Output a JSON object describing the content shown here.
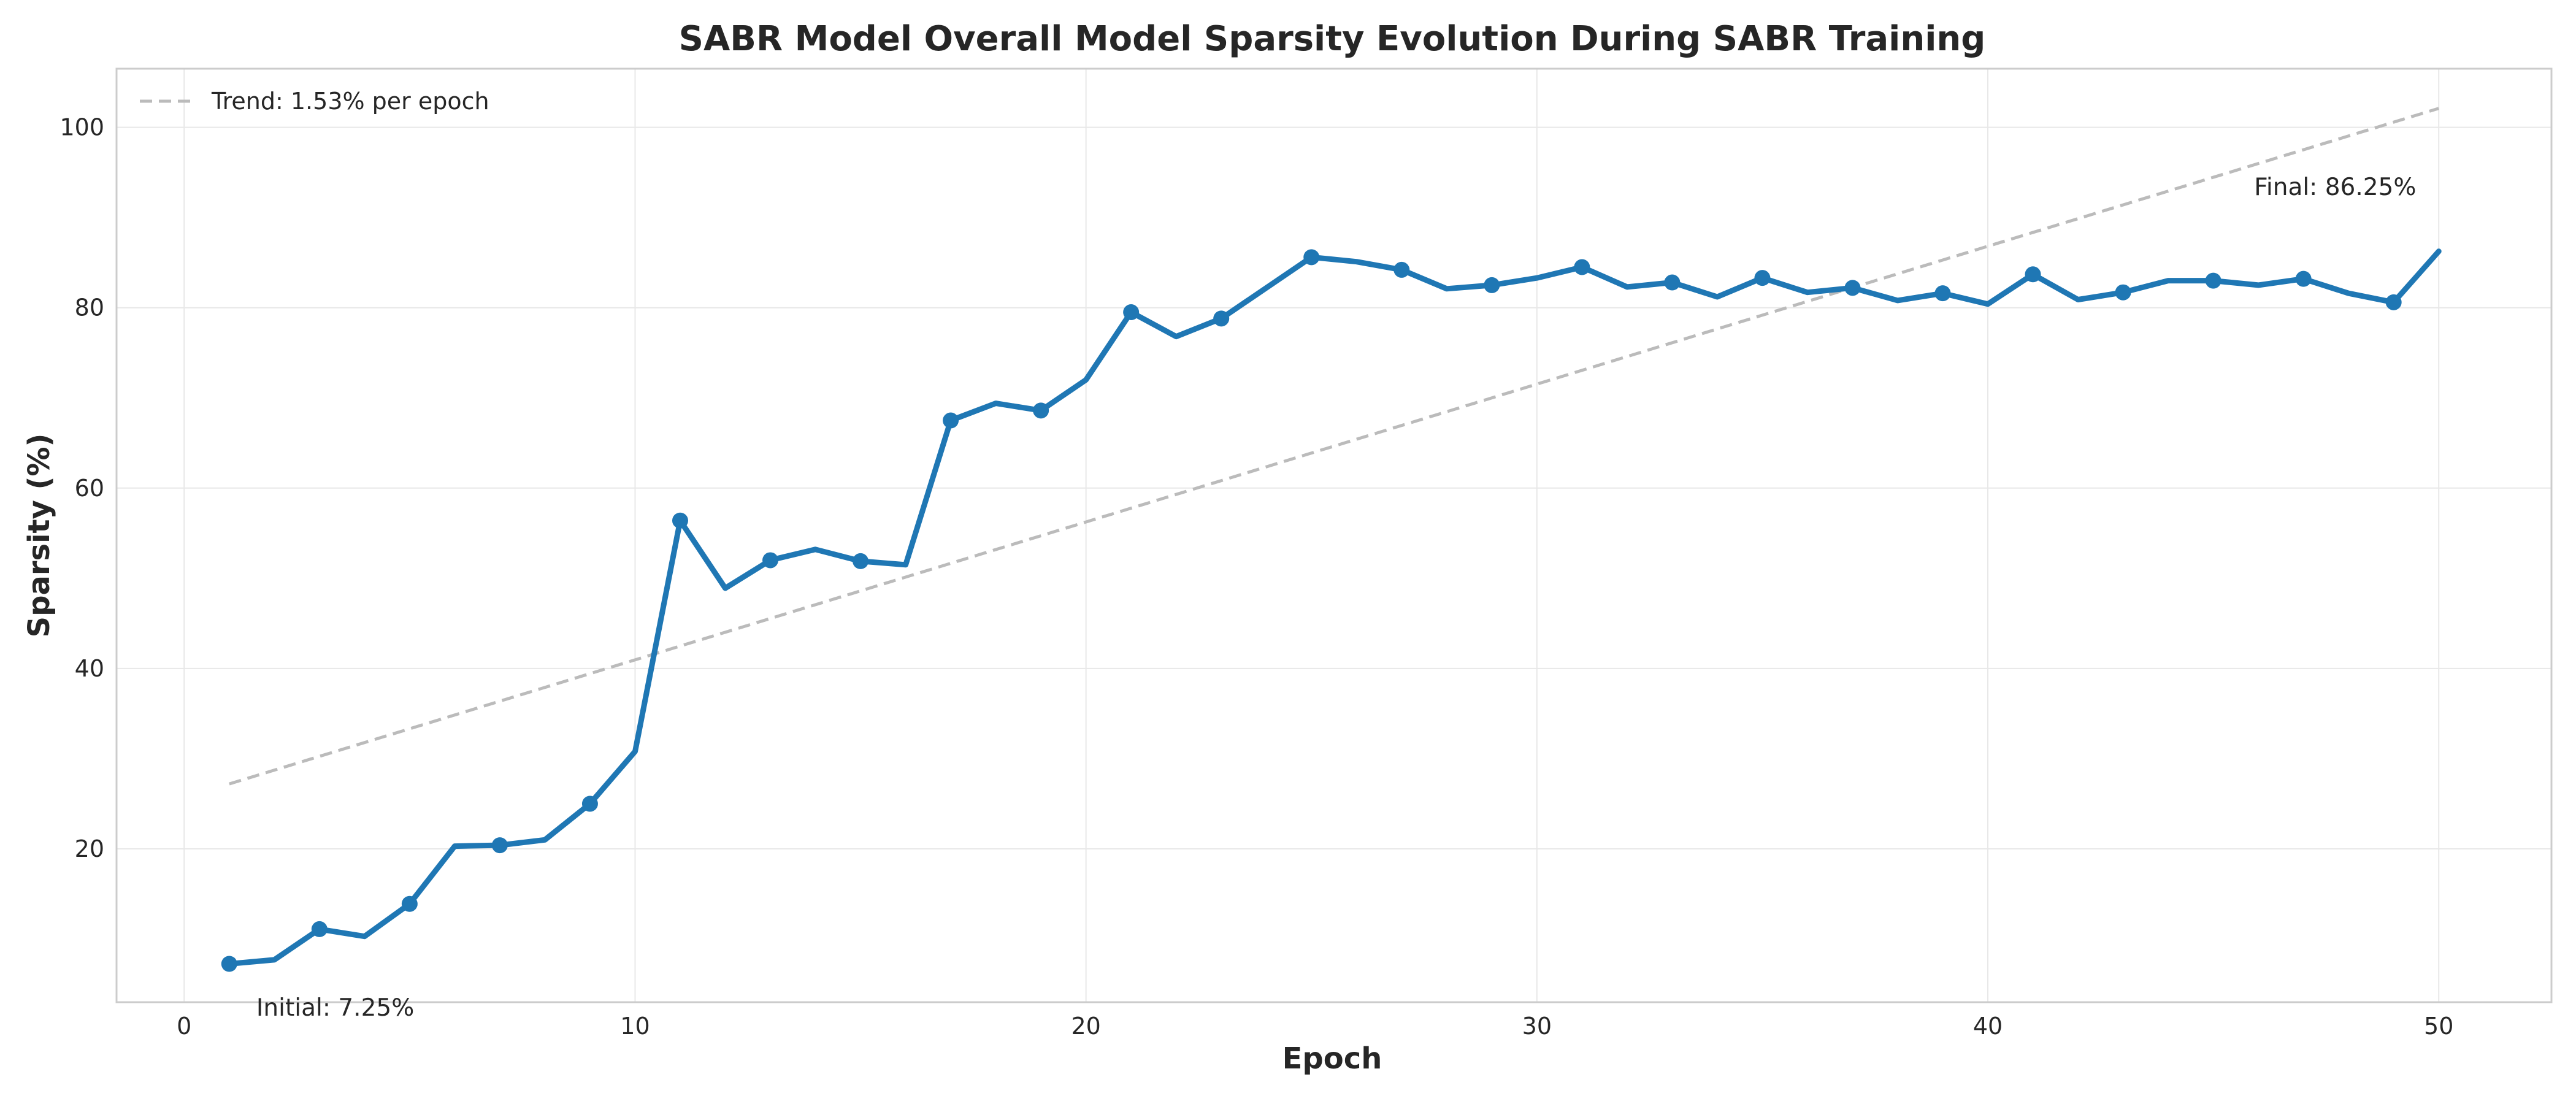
{
  "chart_data": {
    "type": "line",
    "title": "SABR Model Overall Model Sparsity Evolution During SABR Training",
    "xlabel": "Epoch",
    "ylabel": "Sparsity (%)",
    "xlim": [
      -1.5,
      52.5
    ],
    "ylim": [
      3,
      106.5
    ],
    "xticks": [
      0,
      10,
      20,
      30,
      40,
      50
    ],
    "yticks": [
      20,
      40,
      60,
      80,
      100
    ],
    "grid": true,
    "legend": {
      "placement": "top-left",
      "entries": [
        "Trend: 1.53% per epoch"
      ]
    },
    "series": [
      {
        "color": "#1f77b4",
        "markers_every": 2,
        "x": [
          1,
          2,
          3,
          4,
          5,
          6,
          7,
          8,
          9,
          10,
          11,
          12,
          13,
          14,
          15,
          16,
          17,
          18,
          19,
          20,
          21,
          22,
          23,
          24,
          25,
          26,
          27,
          28,
          29,
          30,
          31,
          32,
          33,
          34,
          35,
          36,
          37,
          38,
          39,
          40,
          41,
          42,
          43,
          44,
          45,
          46,
          47,
          48,
          49,
          50
        ],
        "values": [
          7.25,
          7.7,
          11.1,
          10.3,
          13.9,
          20.3,
          20.4,
          21.0,
          25.0,
          30.8,
          56.4,
          48.9,
          52.0,
          53.2,
          51.9,
          51.5,
          67.5,
          69.4,
          68.6,
          72.0,
          79.5,
          76.8,
          78.8,
          82.2,
          85.6,
          85.1,
          84.2,
          82.1,
          82.5,
          83.3,
          84.5,
          82.3,
          82.8,
          81.2,
          83.3,
          81.7,
          82.2,
          80.8,
          81.6,
          80.4,
          83.7,
          80.9,
          81.7,
          83.0,
          83.0,
          82.5,
          83.2,
          81.6,
          80.6,
          86.25
        ]
      }
    ],
    "trend": {
      "name": "Trend: 1.53% per epoch",
      "color": "#bbbbbb",
      "x": [
        1,
        50
      ],
      "values": [
        27.2,
        102.1
      ]
    },
    "annotations": [
      {
        "text": "Initial: 7.25%",
        "x": 1.6,
        "y": 1.5,
        "anchor": "start"
      },
      {
        "text": "Final: 86.25%",
        "x": 49.5,
        "y": 92.5,
        "anchor": "end"
      }
    ]
  }
}
